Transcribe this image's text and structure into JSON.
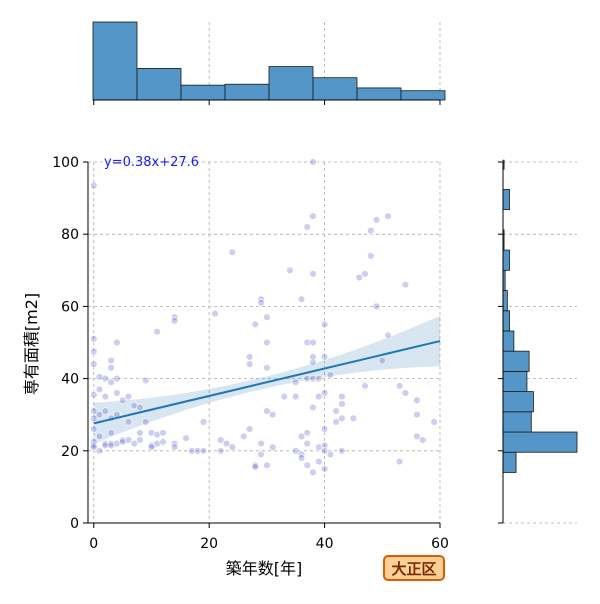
{
  "chart_data": {
    "type": "scatter",
    "title": "",
    "xlabel": "築年数[年]",
    "ylabel": "専有面積[m2]",
    "xlim": [
      -1,
      60
    ],
    "ylim": [
      0,
      100
    ],
    "xticks": [
      0,
      20,
      40,
      60
    ],
    "yticks": [
      0,
      20,
      40,
      60,
      80,
      100
    ],
    "grid": true,
    "regression": {
      "label": "y=0.38x+27.6",
      "slope": 0.38,
      "intercept": 27.6,
      "x_range": [
        0,
        60
      ]
    },
    "points": [
      {
        "x": 0,
        "y": 93.5
      },
      {
        "x": 0,
        "y": 51
      },
      {
        "x": 0,
        "y": 47.5
      },
      {
        "x": 0,
        "y": 44
      },
      {
        "x": 0,
        "y": 35.5
      },
      {
        "x": 0,
        "y": 31
      },
      {
        "x": 0,
        "y": 29
      },
      {
        "x": 0,
        "y": 26
      },
      {
        "x": 0,
        "y": 22.5
      },
      {
        "x": 0,
        "y": 21.5
      },
      {
        "x": 0,
        "y": 21
      },
      {
        "x": 1,
        "y": 40.5
      },
      {
        "x": 1,
        "y": 37
      },
      {
        "x": 1,
        "y": 30
      },
      {
        "x": 1,
        "y": 24
      },
      {
        "x": 1,
        "y": 20
      },
      {
        "x": 2,
        "y": 40
      },
      {
        "x": 2,
        "y": 35
      },
      {
        "x": 2,
        "y": 31
      },
      {
        "x": 2,
        "y": 22
      },
      {
        "x": 2,
        "y": 21.5
      },
      {
        "x": 3,
        "y": 45
      },
      {
        "x": 3,
        "y": 43
      },
      {
        "x": 3,
        "y": 39
      },
      {
        "x": 3,
        "y": 29
      },
      {
        "x": 3,
        "y": 25
      },
      {
        "x": 3,
        "y": 22
      },
      {
        "x": 3,
        "y": 21.5
      },
      {
        "x": 4,
        "y": 50
      },
      {
        "x": 4,
        "y": 40
      },
      {
        "x": 4,
        "y": 36
      },
      {
        "x": 4,
        "y": 30
      },
      {
        "x": 4,
        "y": 22
      },
      {
        "x": 5,
        "y": 34
      },
      {
        "x": 5,
        "y": 23
      },
      {
        "x": 5,
        "y": 22.5
      },
      {
        "x": 6,
        "y": 35
      },
      {
        "x": 6,
        "y": 28
      },
      {
        "x": 6,
        "y": 23
      },
      {
        "x": 7,
        "y": 32.5
      },
      {
        "x": 7,
        "y": 22
      },
      {
        "x": 8,
        "y": 32
      },
      {
        "x": 8,
        "y": 25
      },
      {
        "x": 8,
        "y": 23
      },
      {
        "x": 9,
        "y": 39.5
      },
      {
        "x": 9,
        "y": 28
      },
      {
        "x": 10,
        "y": 25
      },
      {
        "x": 10,
        "y": 21.5
      },
      {
        "x": 10,
        "y": 21
      },
      {
        "x": 11,
        "y": 53
      },
      {
        "x": 11,
        "y": 24.5
      },
      {
        "x": 11,
        "y": 22
      },
      {
        "x": 12,
        "y": 22.5
      },
      {
        "x": 12,
        "y": 25
      },
      {
        "x": 14,
        "y": 57
      },
      {
        "x": 14,
        "y": 56
      },
      {
        "x": 14,
        "y": 22
      },
      {
        "x": 14,
        "y": 21
      },
      {
        "x": 16,
        "y": 23.5
      },
      {
        "x": 17,
        "y": 20
      },
      {
        "x": 18,
        "y": 20
      },
      {
        "x": 19,
        "y": 20
      },
      {
        "x": 19,
        "y": 28
      },
      {
        "x": 21,
        "y": 58
      },
      {
        "x": 22,
        "y": 23
      },
      {
        "x": 22,
        "y": 20
      },
      {
        "x": 23,
        "y": 22
      },
      {
        "x": 24,
        "y": 75
      },
      {
        "x": 24,
        "y": 21
      },
      {
        "x": 26,
        "y": 24
      },
      {
        "x": 27,
        "y": 46
      },
      {
        "x": 27,
        "y": 44
      },
      {
        "x": 27,
        "y": 26
      },
      {
        "x": 28,
        "y": 55
      },
      {
        "x": 28,
        "y": 16
      },
      {
        "x": 28,
        "y": 15.5
      },
      {
        "x": 29,
        "y": 62
      },
      {
        "x": 29,
        "y": 61
      },
      {
        "x": 29,
        "y": 19
      },
      {
        "x": 29,
        "y": 22
      },
      {
        "x": 30,
        "y": 57
      },
      {
        "x": 30,
        "y": 50
      },
      {
        "x": 30,
        "y": 43
      },
      {
        "x": 30,
        "y": 31
      },
      {
        "x": 30,
        "y": 16
      },
      {
        "x": 31,
        "y": 30
      },
      {
        "x": 31,
        "y": 21
      },
      {
        "x": 33,
        "y": 35
      },
      {
        "x": 34,
        "y": 70
      },
      {
        "x": 35,
        "y": 39
      },
      {
        "x": 35,
        "y": 20
      },
      {
        "x": 35,
        "y": 35
      },
      {
        "x": 36,
        "y": 62
      },
      {
        "x": 36,
        "y": 24
      },
      {
        "x": 36,
        "y": 19
      },
      {
        "x": 36,
        "y": 18
      },
      {
        "x": 37,
        "y": 82
      },
      {
        "x": 37,
        "y": 50
      },
      {
        "x": 37,
        "y": 40
      },
      {
        "x": 37,
        "y": 25
      },
      {
        "x": 37,
        "y": 22
      },
      {
        "x": 37,
        "y": 16
      },
      {
        "x": 38,
        "y": 100
      },
      {
        "x": 38,
        "y": 85
      },
      {
        "x": 38,
        "y": 69
      },
      {
        "x": 38,
        "y": 50
      },
      {
        "x": 38,
        "y": 46
      },
      {
        "x": 38,
        "y": 44.5
      },
      {
        "x": 38,
        "y": 40
      },
      {
        "x": 38,
        "y": 32
      },
      {
        "x": 38,
        "y": 14
      },
      {
        "x": 39,
        "y": 40
      },
      {
        "x": 39,
        "y": 35
      },
      {
        "x": 39,
        "y": 21
      },
      {
        "x": 39,
        "y": 17
      },
      {
        "x": 40,
        "y": 55
      },
      {
        "x": 40,
        "y": 46
      },
      {
        "x": 40,
        "y": 36
      },
      {
        "x": 40,
        "y": 26
      },
      {
        "x": 40,
        "y": 21.5
      },
      {
        "x": 40,
        "y": 20
      },
      {
        "x": 40,
        "y": 15
      },
      {
        "x": 41,
        "y": 41
      },
      {
        "x": 41,
        "y": 19
      },
      {
        "x": 42,
        "y": 31
      },
      {
        "x": 42,
        "y": 28
      },
      {
        "x": 43,
        "y": 35
      },
      {
        "x": 43,
        "y": 33
      },
      {
        "x": 43,
        "y": 29
      },
      {
        "x": 43,
        "y": 20
      },
      {
        "x": 45,
        "y": 29
      },
      {
        "x": 46,
        "y": 68
      },
      {
        "x": 47,
        "y": 69
      },
      {
        "x": 47,
        "y": 38
      },
      {
        "x": 48,
        "y": 81
      },
      {
        "x": 48,
        "y": 74
      },
      {
        "x": 49,
        "y": 84
      },
      {
        "x": 49,
        "y": 60
      },
      {
        "x": 50,
        "y": 45
      },
      {
        "x": 51,
        "y": 85
      },
      {
        "x": 51,
        "y": 52
      },
      {
        "x": 53,
        "y": 38
      },
      {
        "x": 53,
        "y": 17
      },
      {
        "x": 54,
        "y": 66
      },
      {
        "x": 54,
        "y": 36
      },
      {
        "x": 56,
        "y": 34
      },
      {
        "x": 56,
        "y": 30
      },
      {
        "x": 56,
        "y": 24
      },
      {
        "x": 57,
        "y": 23
      },
      {
        "x": 59,
        "y": 28
      }
    ],
    "marginal_x": {
      "bin_edges": [
        0,
        7.5,
        15,
        22.5,
        30,
        37.5,
        45,
        52.5,
        60
      ],
      "counts": [
        42,
        17,
        8,
        8.5,
        18,
        12,
        6.5,
        5
      ]
    },
    "marginal_y": {
      "bin_edges": [
        14,
        19.6,
        25.2,
        30.8,
        36.4,
        42,
        47.6,
        53.2,
        58.8,
        64.4,
        70,
        75.6,
        81.2,
        86.8,
        92.4,
        98,
        100.5
      ],
      "counts": [
        6,
        34,
        13,
        14,
        11,
        12,
        5,
        3,
        2,
        1,
        3,
        0.5,
        0,
        3,
        0,
        0.5
      ]
    }
  },
  "badge": {
    "label": "大正区"
  }
}
